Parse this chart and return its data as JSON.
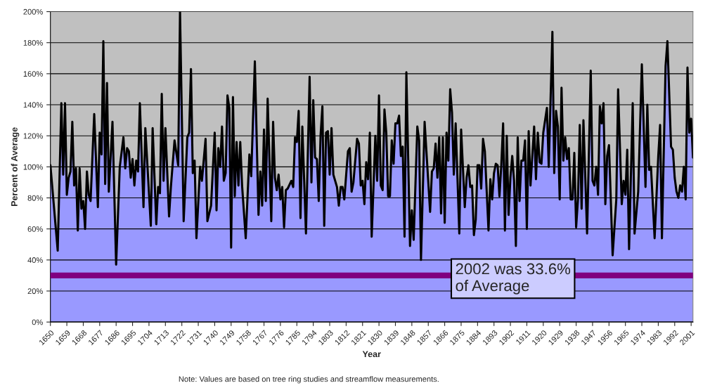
{
  "chart_data": {
    "type": "area",
    "xlabel": "Year",
    "ylabel": "Percent of Average",
    "annotations": [
      "2002 was 33.6%\nof Average",
      "Note: Values are based on tree ring studies and streamflow measurements."
    ],
    "xlim": [
      1650,
      2002
    ],
    "xticks": [
      1650,
      1659,
      1668,
      1677,
      1686,
      1695,
      1704,
      1713,
      1722,
      1731,
      1740,
      1749,
      1758,
      1767,
      1776,
      1785,
      1794,
      1803,
      1812,
      1821,
      1830,
      1839,
      1848,
      1857,
      1866,
      1875,
      1884,
      1893,
      1902,
      1911,
      1920,
      1929,
      1938,
      1947,
      1956,
      1965,
      1974,
      1983,
      1992,
      2001
    ],
    "ylim": [
      0,
      200
    ],
    "yticks": [
      {
        "value": 0,
        "label": "0%"
      },
      {
        "value": 20,
        "label": "20%"
      },
      {
        "value": 40,
        "label": "40%"
      },
      {
        "value": 60,
        "label": "60%"
      },
      {
        "value": 80,
        "label": "80%"
      },
      {
        "value": 100,
        "label": "100%"
      },
      {
        "value": 120,
        "label": "120%"
      },
      {
        "value": 140,
        "label": "140%"
      },
      {
        "value": 160,
        "label": "160%"
      },
      {
        "value": 180,
        "label": "180%"
      },
      {
        "value": 200,
        "label": "200%"
      }
    ],
    "grid": "y",
    "legend": false,
    "ref_lines": [
      {
        "axis": "y",
        "value": 30,
        "color": "#800080"
      }
    ],
    "series": [
      {
        "color": "#9999ff",
        "x": [
          1650,
          1654,
          1656,
          1657,
          1658,
          1659,
          1660,
          1661,
          1662,
          1663,
          1664,
          1665,
          1666,
          1667,
          1668,
          1669,
          1670,
          1671,
          1672,
          1674,
          1676,
          1677,
          1678,
          1679,
          1680,
          1681,
          1682,
          1684,
          1686,
          1688,
          1690,
          1691,
          1692,
          1693,
          1694,
          1695,
          1696,
          1697,
          1698,
          1699,
          1701,
          1702,
          1705,
          1706,
          1708,
          1709,
          1710,
          1711,
          1712,
          1713,
          1715,
          1716,
          1718,
          1720,
          1721,
          1723,
          1725,
          1726,
          1727,
          1728,
          1729,
          1730,
          1732,
          1733,
          1735,
          1736,
          1738,
          1740,
          1741,
          1742,
          1743,
          1744,
          1745,
          1746,
          1747,
          1748,
          1749,
          1750,
          1751,
          1752,
          1753,
          1754,
          1755,
          1757,
          1759,
          1760,
          1762,
          1764,
          1765,
          1766,
          1767,
          1768,
          1769,
          1771,
          1772,
          1773,
          1774,
          1775,
          1776,
          1777,
          1778,
          1779,
          1780,
          1782,
          1783,
          1784,
          1785,
          1786,
          1787,
          1788,
          1790,
          1792,
          1793,
          1794,
          1795,
          1796,
          1797,
          1798,
          1799,
          1800,
          1801,
          1802,
          1803,
          1804,
          1805,
          1807,
          1808,
          1809,
          1810,
          1811,
          1813,
          1814,
          1815,
          1816,
          1818,
          1819,
          1820,
          1821,
          1822,
          1823,
          1824,
          1825,
          1826,
          1828,
          1829,
          1830,
          1831,
          1832,
          1833,
          1834,
          1835,
          1836,
          1837,
          1838,
          1839,
          1840,
          1841,
          1842,
          1843,
          1844,
          1845,
          1847,
          1848,
          1849,
          1851,
          1852,
          1853,
          1855,
          1858,
          1859,
          1860,
          1861,
          1862,
          1863,
          1864,
          1865,
          1866,
          1867,
          1868,
          1869,
          1870,
          1871,
          1872,
          1874,
          1875,
          1877,
          1878,
          1879,
          1880,
          1881,
          1882,
          1883,
          1884,
          1885,
          1886,
          1887,
          1888,
          1890,
          1891,
          1892,
          1893,
          1894,
          1895,
          1896,
          1897,
          1898,
          1899,
          1900,
          1901,
          1902,
          1903,
          1904,
          1905,
          1906,
          1907,
          1908,
          1909,
          1910,
          1911,
          1912,
          1913,
          1915,
          1916,
          1917,
          1918,
          1919,
          1920,
          1922,
          1923,
          1925,
          1926,
          1927,
          1928,
          1929,
          1930,
          1931,
          1932,
          1933,
          1934,
          1935,
          1936,
          1937,
          1938,
          1939,
          1940,
          1941,
          1942,
          1944,
          1946,
          1947,
          1948,
          1949,
          1950,
          1951,
          1952,
          1953,
          1954,
          1955,
          1956,
          1958,
          1960,
          1961,
          1963,
          1964,
          1965,
          1966,
          1967,
          1969,
          1970,
          1972,
          1974,
          1976,
          1977,
          1978,
          1979,
          1981,
          1983,
          1984,
          1985,
          1987,
          1988,
          1990,
          1991,
          1992,
          1993,
          1994,
          1995,
          1996,
          1997,
          1998,
          1999,
          2000,
          2001,
          2002
        ],
        "values": [
          101,
          46,
          141,
          95,
          141,
          82,
          93,
          97,
          129,
          88,
          99,
          59,
          99,
          73,
          78,
          60,
          97,
          82,
          78,
          134,
          74,
          122,
          108,
          181,
          89,
          154,
          84,
          129,
          37,
          100,
          119,
          99,
          112,
          110,
          93,
          105,
          88,
          104,
          97,
          141,
          74,
          125,
          62,
          125,
          63,
          87,
          83,
          147,
          91,
          125,
          68,
          87,
          117,
          101,
          200,
          65,
          119,
          122,
          163,
          96,
          104,
          54,
          100,
          91,
          118,
          65,
          75,
          122,
          72,
          112,
          100,
          126,
          91,
          96,
          146,
          138,
          48,
          145,
          81,
          116,
          88,
          116,
          88,
          54,
          108,
          94,
          168,
          69,
          97,
          75,
          124,
          78,
          144,
          65,
          129,
          93,
          85,
          95,
          79,
          87,
          61,
          85,
          86,
          91,
          87,
          119,
          116,
          136,
          67,
          126,
          57,
          158,
          90,
          143,
          106,
          105,
          78,
          120,
          139,
          62,
          122,
          123,
          95,
          125,
          95,
          87,
          75,
          87,
          87,
          79,
          110,
          112,
          84,
          90,
          118,
          115,
          88,
          91,
          76,
          103,
          92,
          122,
          55,
          120,
          91,
          146,
          88,
          85,
          137,
          122,
          81,
          81,
          117,
          102,
          128,
          128,
          133,
          107,
          113,
          55,
          161,
          49,
          72,
          53,
          126,
          117,
          40,
          129,
          71,
          97,
          99,
          115,
          93,
          119,
          70,
          119,
          64,
          122,
          104,
          150,
          135,
          95,
          128,
          57,
          124,
          74,
          93,
          101,
          87,
          88,
          56,
          66,
          101,
          101,
          86,
          118,
          110,
          59,
          92,
          79,
          96,
          102,
          101,
          81,
          101,
          128,
          59,
          120,
          69,
          93,
          107,
          91,
          49,
          119,
          78,
          104,
          104,
          117,
          60,
          123,
          88,
          126,
          92,
          122,
          103,
          102,
          122,
          138,
          100,
          187,
          96,
          136,
          126,
          79,
          151,
          104,
          119,
          105,
          112,
          79,
          79,
          109,
          61,
          79,
          127,
          73,
          130,
          57,
          162,
          91,
          88,
          100,
          82,
          139,
          128,
          141,
          76,
          107,
          114,
          43,
          79,
          150,
          76,
          91,
          82,
          111,
          47,
          141,
          57,
          84,
          166,
          87,
          140,
          98,
          100,
          54,
          107,
          127,
          54,
          165,
          181,
          113,
          111,
          93,
          84,
          80,
          88,
          84,
          100,
          79,
          164,
          122,
          131,
          106
        ]
      }
    ]
  }
}
